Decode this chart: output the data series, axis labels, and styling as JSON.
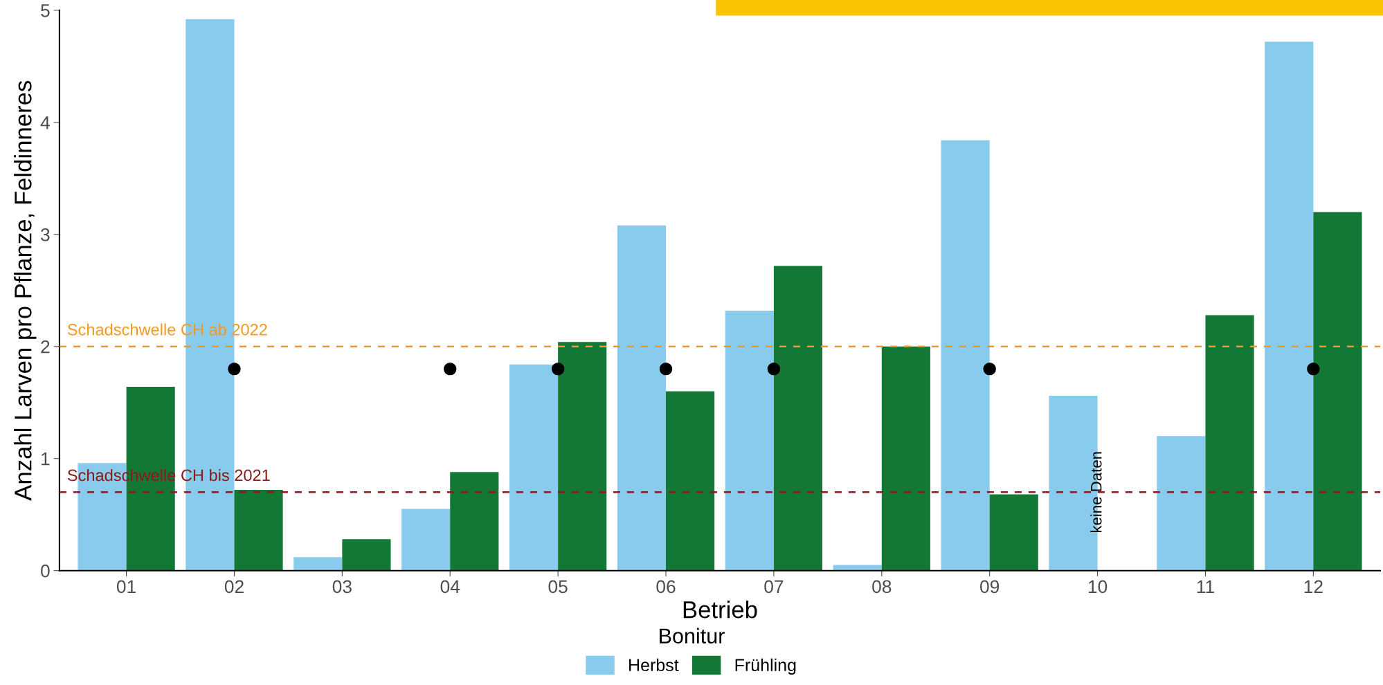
{
  "chart_data": {
    "type": "bar",
    "xlabel": "Betrieb",
    "ylabel": "Anzahl Larven pro Pflanze, Feldinneres",
    "legend_title": "Bonitur",
    "categories": [
      "01",
      "02",
      "03",
      "04",
      "05",
      "06",
      "07",
      "08",
      "09",
      "10",
      "11",
      "12"
    ],
    "series": [
      {
        "name": "Herbst",
        "color": "#89cbec",
        "values": [
          0.96,
          4.92,
          0.12,
          0.55,
          1.84,
          3.08,
          2.32,
          0.05,
          3.84,
          1.56,
          1.2,
          4.72
        ]
      },
      {
        "name": "Frühling",
        "color": "#137736",
        "values": [
          1.64,
          0.72,
          0.28,
          0.88,
          2.04,
          1.6,
          2.72,
          2.0,
          0.68,
          null,
          2.28,
          3.2
        ]
      },
      {
        "type": "scatter",
        "color": "#000000",
        "x": [
          "02",
          "04",
          "05",
          "06",
          "07",
          "09",
          "12"
        ],
        "values": [
          1.8,
          1.8,
          1.8,
          1.8,
          1.8,
          1.8,
          1.8
        ]
      }
    ],
    "ylim": [
      0,
      5
    ],
    "yticks": [
      0,
      1,
      2,
      3,
      4,
      5
    ],
    "ref_lines": [
      {
        "axis": "y",
        "value": 2,
        "label": "Schadschwelle CH ab 2022",
        "color": "#f29a1f",
        "line_style": "dashed"
      },
      {
        "axis": "y",
        "value": 0.7,
        "label": "Schadschwelle CH bis 2021",
        "color": "#8b1a1a",
        "line_style": "dashed"
      }
    ],
    "annotations": [
      {
        "text": "keine Daten",
        "x": "10",
        "y": 0.7
      }
    ],
    "grid": false,
    "legend": "bottom",
    "marker": "circle"
  }
}
